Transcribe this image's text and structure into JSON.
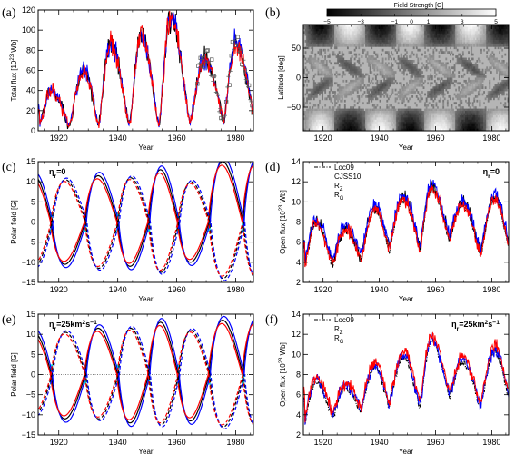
{
  "chart_data": [
    {
      "panel_label": "(a)",
      "type": "line",
      "xlabel": "Year",
      "ylabel": "Total flux [10²³ Wb]",
      "xlim": [
        1913,
        1986
      ],
      "ylim": [
        0,
        120
      ],
      "xticks": [
        "1920",
        "1940",
        "1960",
        "1980"
      ],
      "yticks": [
        "0",
        "20",
        "40",
        "60",
        "80",
        "100",
        "120"
      ],
      "cycle_maxima": [
        {
          "x": 1917.5,
          "y": 40
        },
        {
          "x": 1928.5,
          "y": 60
        },
        {
          "x": 1937.5,
          "y": 85
        },
        {
          "x": 1948.0,
          "y": 95
        },
        {
          "x": 1958.0,
          "y": 113
        },
        {
          "x": 1969.5,
          "y": 72
        },
        {
          "x": 1980.0,
          "y": 88
        }
      ],
      "cycle_minima": [
        {
          "x": 1913.5,
          "y": 5
        },
        {
          "x": 1923.5,
          "y": 5
        },
        {
          "x": 1933.5,
          "y": 5
        },
        {
          "x": 1944.0,
          "y": 6
        },
        {
          "x": 1954.0,
          "y": 5
        },
        {
          "x": 1964.5,
          "y": 8
        },
        {
          "x": 1976.0,
          "y": 10
        },
        {
          "x": 1986.0,
          "y": 20
        }
      ],
      "series": [
        {
          "color": "#000000"
        },
        {
          "color": "#0000ff"
        },
        {
          "color": "#ff0000"
        }
      ],
      "observations": {
        "x_start": 1967,
        "x_end": 1986,
        "marker": "+ and □"
      }
    },
    {
      "panel_label": "(b)",
      "type": "heatmap",
      "colorbar_title": "Field Strength [G]",
      "colorbar_ticks": [
        "−5",
        "−3",
        "−1",
        "0",
        "1",
        "3",
        "5"
      ],
      "colorbar_range": [
        -5,
        5
      ],
      "xlabel": "Year",
      "ylabel": "Latitude [deg]",
      "xlim": [
        1913,
        1986
      ],
      "ylim": [
        -90,
        90
      ],
      "xticks": [
        "1920",
        "1940",
        "1960",
        "1980"
      ],
      "yticks": [
        "−50",
        "0",
        "50"
      ],
      "polar_reversals": [
        1914,
        1924,
        1935,
        1946,
        1956,
        1967,
        1978
      ]
    },
    {
      "panel_label": "(c)",
      "type": "line",
      "annotation": "η_r=0",
      "xlabel": "Year",
      "ylabel": "Polar field [G]",
      "xlim": [
        1913,
        1986
      ],
      "ylim": [
        -15,
        15
      ],
      "xticks": [
        "1920",
        "1940",
        "1960",
        "1980"
      ],
      "yticks": [
        "−15",
        "−10",
        "−5",
        "0",
        "5",
        "10",
        "15"
      ],
      "reversal_years": [
        1917.5,
        1929,
        1940,
        1950.5,
        1960.5,
        1971,
        1982.5
      ],
      "north_extrema": [
        11.5,
        -10.5,
        11.5,
        -11,
        13,
        -10,
        15
      ],
      "south_extrema": [
        -11,
        10.5,
        -11.5,
        11,
        -12.5,
        10,
        -14
      ],
      "series": [
        {
          "color": "#000000",
          "style": "solid"
        },
        {
          "color": "#0000ff",
          "style": "solid"
        },
        {
          "color": "#ff0000",
          "style": "solid"
        },
        {
          "color": "#000000",
          "style": "dashed"
        },
        {
          "color": "#0000ff",
          "style": "dashed"
        },
        {
          "color": "#ff0000",
          "style": "dashed"
        }
      ]
    },
    {
      "panel_label": "(d)",
      "type": "line",
      "annotation": "η_r=0",
      "xlabel": "Year",
      "ylabel": "Open flux [10²³ Wb]",
      "xlim": [
        1913,
        1986
      ],
      "ylim": [
        2,
        14
      ],
      "xticks": [
        "1920",
        "1940",
        "1960",
        "1980"
      ],
      "yticks": [
        "2",
        "4",
        "6",
        "8",
        "10",
        "12",
        "14"
      ],
      "legend": [
        "Loc09",
        "CJSS10",
        "R_Z",
        "R_G"
      ],
      "legend_placement": "top-left",
      "cycle_maxima": [
        {
          "x": 1917.5,
          "y": 8
        },
        {
          "x": 1928,
          "y": 7.5
        },
        {
          "x": 1938.5,
          "y": 9.5
        },
        {
          "x": 1948.5,
          "y": 10.5
        },
        {
          "x": 1958.5,
          "y": 11.5
        },
        {
          "x": 1969.5,
          "y": 10
        },
        {
          "x": 1981,
          "y": 10.5
        }
      ],
      "cycle_minima": [
        {
          "x": 1913.5,
          "y": 4
        },
        {
          "x": 1923.5,
          "y": 4
        },
        {
          "x": 1933.5,
          "y": 4.5
        },
        {
          "x": 1943.5,
          "y": 5.5
        },
        {
          "x": 1954.5,
          "y": 5.5
        },
        {
          "x": 1965,
          "y": 6.5
        },
        {
          "x": 1976,
          "y": 5
        },
        {
          "x": 1986,
          "y": 6
        }
      ],
      "series": [
        {
          "name": "Loc09",
          "color": "#000000",
          "style": "dash-dot"
        },
        {
          "name": "CJSS10",
          "color": "#000000",
          "style": "solid"
        },
        {
          "name": "R_Z",
          "color": "#0000ff",
          "style": "solid"
        },
        {
          "name": "R_G",
          "color": "#ff0000",
          "style": "solid"
        }
      ]
    },
    {
      "panel_label": "(e)",
      "type": "line",
      "annotation": "η_r=25km²s⁻¹",
      "xlabel": "Year",
      "ylabel": "Polar field [G]",
      "xlim": [
        1913,
        1986
      ],
      "ylim": [
        -15,
        15
      ],
      "xticks": [
        "1920",
        "1940",
        "1960",
        "1980"
      ],
      "yticks": [
        "−15",
        "−10",
        "−5",
        "0",
        "5",
        "10",
        "15"
      ],
      "reversal_years": [
        1917.5,
        1929,
        1940,
        1950.5,
        1960.5,
        1971,
        1982.5
      ],
      "north_extrema": [
        10.5,
        -11,
        11.5,
        -12,
        13,
        -11.5,
        13.5
      ],
      "south_extrema": [
        -10,
        10.5,
        -11,
        11.5,
        -12.5,
        11,
        -13
      ],
      "series": [
        {
          "color": "#000000",
          "style": "solid"
        },
        {
          "color": "#0000ff",
          "style": "solid"
        },
        {
          "color": "#ff0000",
          "style": "solid"
        },
        {
          "color": "#000000",
          "style": "dashed"
        },
        {
          "color": "#0000ff",
          "style": "dashed"
        },
        {
          "color": "#ff0000",
          "style": "dashed"
        }
      ]
    },
    {
      "panel_label": "(f)",
      "type": "line",
      "annotation": "η_r=25km²s⁻¹",
      "xlabel": "Year",
      "ylabel": "Open flux [10²³ Wb]",
      "xlim": [
        1913,
        1986
      ],
      "ylim": [
        2,
        14
      ],
      "xticks": [
        "1920",
        "1940",
        "1960",
        "1980"
      ],
      "yticks": [
        "2",
        "4",
        "6",
        "8",
        "10",
        "12",
        "14"
      ],
      "legend": [
        "Loc09",
        "R_Z",
        "R_G"
      ],
      "legend_placement": "top-left",
      "cycle_maxima": [
        {
          "x": 1917.5,
          "y": 7.5
        },
        {
          "x": 1928,
          "y": 7
        },
        {
          "x": 1938.5,
          "y": 9
        },
        {
          "x": 1948.5,
          "y": 10
        },
        {
          "x": 1958.5,
          "y": 11.5
        },
        {
          "x": 1969.5,
          "y": 9.5
        },
        {
          "x": 1981,
          "y": 10.5
        }
      ],
      "cycle_minima": [
        {
          "x": 1913.5,
          "y": 3.5
        },
        {
          "x": 1923.5,
          "y": 4
        },
        {
          "x": 1933.5,
          "y": 4.5
        },
        {
          "x": 1943.5,
          "y": 5
        },
        {
          "x": 1954.5,
          "y": 5
        },
        {
          "x": 1965,
          "y": 6
        },
        {
          "x": 1976,
          "y": 5
        },
        {
          "x": 1986,
          "y": 6
        }
      ],
      "series": [
        {
          "name": "Loc09",
          "color": "#000000",
          "style": "dash-dot"
        },
        {
          "name": "R_Z",
          "color": "#0000ff",
          "style": "solid"
        },
        {
          "name": "R_G",
          "color": "#ff0000",
          "style": "solid"
        }
      ]
    }
  ]
}
